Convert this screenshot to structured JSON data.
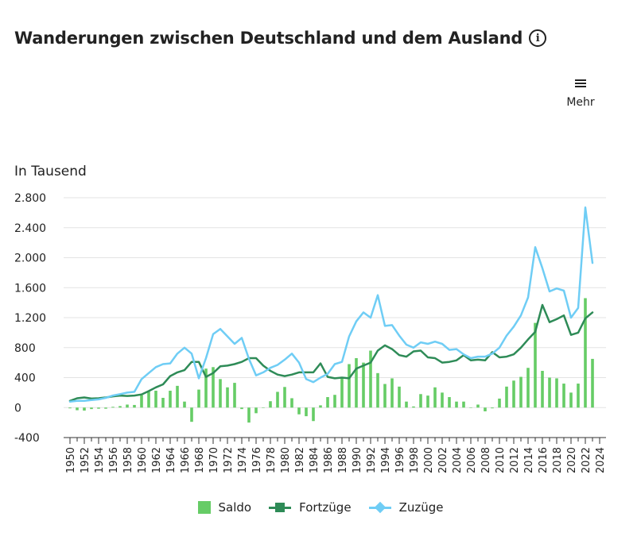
{
  "title": "Wanderungen zwischen Deutschland und dem Ausland",
  "menu": {
    "label": "Mehr"
  },
  "unit": "In Tausend",
  "colors": {
    "saldo": "#66cc66",
    "fortzuege": "#2e8b57",
    "zuzuege": "#6fcdf5"
  },
  "chart_data": {
    "type": "bar+line",
    "unit": "In Tausend",
    "ylim": [
      -400,
      2800
    ],
    "yticks": [
      -400,
      0,
      400,
      800,
      1200,
      1600,
      2000,
      2400,
      2800
    ],
    "ytick_labels": [
      "-400",
      "0",
      "400",
      "800",
      "1.200",
      "1.600",
      "2.000",
      "2.400",
      "2.800"
    ],
    "x_tick_labels": [
      "1950",
      "1952",
      "1954",
      "1956",
      "1958",
      "1960",
      "1962",
      "1964",
      "1966",
      "1968",
      "1970",
      "1972",
      "1974",
      "1976",
      "1978",
      "1980",
      "1982",
      "1984",
      "1986",
      "1988",
      "1990",
      "1992",
      "1994",
      "1996",
      "1998",
      "2000",
      "2002",
      "2004",
      "2006",
      "2008",
      "2010",
      "2012",
      "2014",
      "2016",
      "2018",
      "2020",
      "2022",
      "2024"
    ],
    "legend": "bottom",
    "x": [
      1950,
      1951,
      1952,
      1953,
      1954,
      1955,
      1956,
      1957,
      1958,
      1959,
      1960,
      1961,
      1962,
      1963,
      1964,
      1965,
      1966,
      1967,
      1968,
      1969,
      1970,
      1971,
      1972,
      1973,
      1974,
      1975,
      1976,
      1977,
      1978,
      1979,
      1980,
      1981,
      1982,
      1983,
      1984,
      1985,
      1986,
      1987,
      1988,
      1989,
      1990,
      1991,
      1992,
      1993,
      1994,
      1995,
      1996,
      1997,
      1998,
      1999,
      2000,
      2001,
      2002,
      2003,
      2004,
      2005,
      2006,
      2007,
      2008,
      2009,
      2010,
      2011,
      2012,
      2013,
      2014,
      2015,
      2016,
      2017,
      2018,
      2019,
      2020,
      2021,
      2022,
      2023
    ],
    "series": [
      {
        "name": "Saldo",
        "type": "bar",
        "values": [
          -10,
          -35,
          -40,
          -20,
          -15,
          -15,
          10,
          20,
          40,
          35,
          165,
          210,
          225,
          130,
          225,
          290,
          80,
          -190,
          240,
          520,
          540,
          380,
          270,
          330,
          -20,
          -200,
          -75,
          0,
          85,
          210,
          275,
          125,
          -90,
          -115,
          -180,
          30,
          140,
          170,
          410,
          580,
          660,
          600,
          760,
          460,
          315,
          390,
          280,
          80,
          15,
          180,
          160,
          270,
          200,
          140,
          80,
          80,
          -5,
          40,
          -50,
          -10,
          120,
          280,
          360,
          410,
          530,
          1130,
          490,
          400,
          390,
          320,
          200,
          320,
          1460,
          650
        ]
      },
      {
        "name": "Fortzüge",
        "type": "line",
        "values": [
          90,
          125,
          135,
          120,
          125,
          135,
          150,
          160,
          155,
          160,
          175,
          220,
          270,
          310,
          420,
          470,
          500,
          610,
          610,
          410,
          460,
          550,
          560,
          580,
          610,
          660,
          660,
          560,
          490,
          440,
          420,
          440,
          470,
          470,
          470,
          590,
          410,
          390,
          400,
          390,
          520,
          560,
          600,
          760,
          830,
          780,
          700,
          680,
          750,
          760,
          670,
          660,
          600,
          610,
          630,
          700,
          630,
          640,
          630,
          740,
          670,
          680,
          710,
          800,
          910,
          1010,
          1370,
          1140,
          1180,
          1230,
          970,
          1000,
          1190,
          1270
        ]
      },
      {
        "name": "Zuzüge",
        "type": "line",
        "values": [
          80,
          90,
          90,
          100,
          110,
          130,
          160,
          180,
          200,
          210,
          380,
          460,
          540,
          580,
          590,
          720,
          800,
          720,
          390,
          660,
          980,
          1050,
          950,
          850,
          930,
          650,
          430,
          470,
          530,
          570,
          640,
          720,
          600,
          380,
          340,
          400,
          450,
          580,
          610,
          950,
          1150,
          1270,
          1200,
          1500,
          1090,
          1100,
          960,
          840,
          800,
          870,
          850,
          880,
          850,
          770,
          780,
          710,
          660,
          680,
          680,
          720,
          800,
          960,
          1080,
          1230,
          1470,
          2140,
          1860,
          1550,
          1590,
          1560,
          1200,
          1330,
          2670,
          1930
        ]
      }
    ]
  },
  "legend_items": [
    {
      "label": "Saldo"
    },
    {
      "label": "Fortzüge"
    },
    {
      "label": "Zuzüge"
    }
  ]
}
